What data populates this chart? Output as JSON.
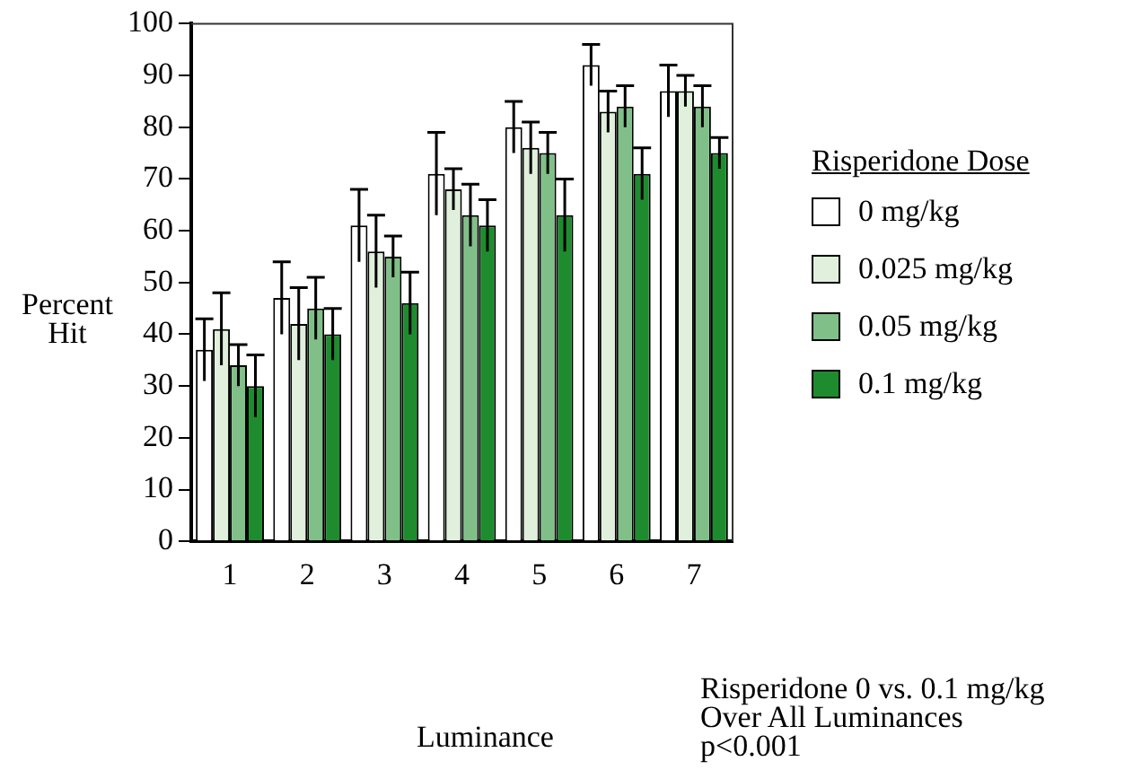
{
  "chart_data": {
    "type": "bar",
    "xlabel": "Luminance",
    "ylabel": "Percent\nHit",
    "legend_title": "Risperidone Dose",
    "categories": [
      "1",
      "2",
      "3",
      "4",
      "5",
      "6",
      "7"
    ],
    "ylim": [
      0,
      100
    ],
    "yticks": [
      0,
      10,
      20,
      30,
      40,
      50,
      60,
      70,
      80,
      90,
      100
    ],
    "grid": false,
    "legend": "right",
    "series": [
      {
        "name": "0 mg/kg",
        "color": "#ffffff",
        "values": [
          37,
          47,
          61,
          71,
          80,
          92,
          87
        ],
        "errors": [
          6,
          7,
          7,
          8,
          5,
          4,
          5
        ]
      },
      {
        "name": "0.025 mg/kg",
        "color": "#e0f0dc",
        "values": [
          41,
          42,
          56,
          68,
          76,
          83,
          87
        ],
        "errors": [
          7,
          7,
          7,
          4,
          5,
          4,
          3
        ]
      },
      {
        "name": "0.05 mg/kg",
        "color": "#80c088",
        "values": [
          34,
          45,
          55,
          63,
          75,
          84,
          84
        ],
        "errors": [
          4,
          6,
          4,
          6,
          4,
          4,
          4
        ]
      },
      {
        "name": "0.1 mg/kg",
        "color": "#1e8c2e",
        "values": [
          30,
          40,
          46,
          61,
          63,
          71,
          75
        ],
        "errors": [
          6,
          5,
          6,
          5,
          7,
          5,
          3
        ]
      }
    ],
    "annotations": [
      "Risperidone 0 vs. 0.1 mg/kg\nOver All Luminances\np<0.001"
    ]
  }
}
